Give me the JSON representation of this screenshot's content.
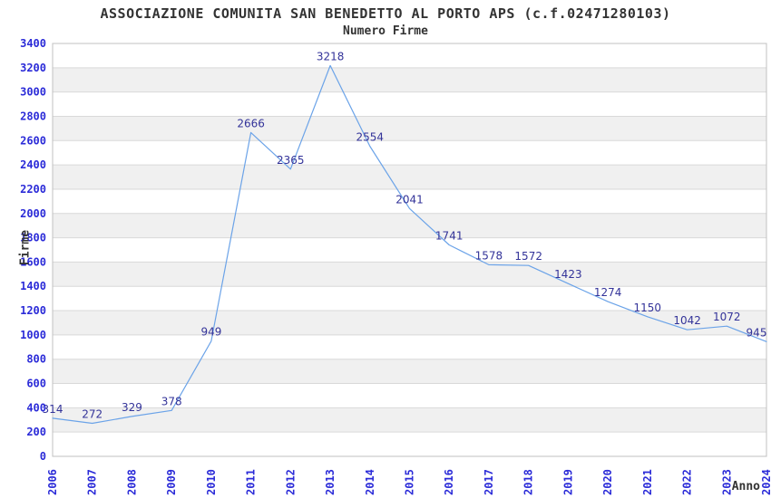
{
  "page": {
    "background": "#ffffff"
  },
  "chart_data": {
    "type": "line",
    "title": "ASSOCIAZIONE COMUNITA SAN BENEDETTO AL PORTO APS (c.f.02471280103)",
    "subtitle": "Numero Firme",
    "xlabel": "Anno",
    "ylabel": "Firme",
    "categories": [
      "2006",
      "2007",
      "2008",
      "2009",
      "2010",
      "2011",
      "2012",
      "2013",
      "2014",
      "2015",
      "2016",
      "2017",
      "2018",
      "2019",
      "2020",
      "2021",
      "2022",
      "2023",
      "2024"
    ],
    "series": [
      {
        "name": "Numero Firme",
        "values": [
          314,
          272,
          329,
          378,
          949,
          2666,
          2365,
          3218,
          2554,
          2041,
          1741,
          1578,
          1572,
          1423,
          1274,
          1150,
          1042,
          1072,
          945
        ]
      }
    ],
    "ylim": [
      0,
      3400
    ],
    "ytick_step": 200,
    "grid": "horizontal-bands",
    "legend": "none",
    "data_labels": true,
    "colors": {
      "line": "#6ba3e8",
      "data_label": "#333399",
      "tick_label": "#2b2bd8",
      "title": "#333333",
      "axis_title": "#333333",
      "band": "#f0f0f0",
      "gridline": "#d9d9d9",
      "border": "#c0c0c0",
      "background": "#ffffff"
    }
  }
}
